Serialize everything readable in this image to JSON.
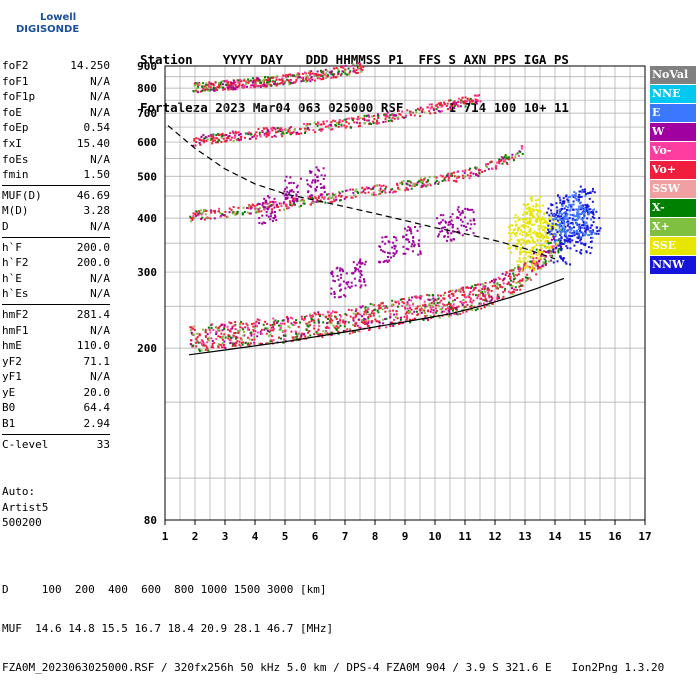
{
  "logo": {
    "line1": "Lowell",
    "line2": "DIGISONDE"
  },
  "header": {
    "labels": "Station    YYYY DAY   DDD HHMMSS P1  FFS S AXN PPS IGA PS",
    "values": "Fortaleza 2023 Mar04 063 025000 RSF      1 714 100 10+ 11"
  },
  "params": {
    "group1": [
      {
        "label": "foF2",
        "value": "14.250"
      },
      {
        "label": "foF1",
        "value": "N/A"
      },
      {
        "label": "foF1p",
        "value": "N/A"
      },
      {
        "label": "foE",
        "value": "N/A"
      },
      {
        "label": "foEp",
        "value": "0.54"
      },
      {
        "label": "fxI",
        "value": "15.40"
      },
      {
        "label": "foEs",
        "value": "N/A"
      },
      {
        "label": "fmin",
        "value": "1.50"
      }
    ],
    "group2": [
      {
        "label": "MUF(D)",
        "value": "46.69"
      },
      {
        "label": "M(D)",
        "value": "3.28"
      },
      {
        "label": "D",
        "value": "N/A"
      }
    ],
    "group3": [
      {
        "label": "h`F",
        "value": "200.0"
      },
      {
        "label": "h`F2",
        "value": "200.0"
      },
      {
        "label": "h`E",
        "value": "N/A"
      },
      {
        "label": "h`Es",
        "value": "N/A"
      }
    ],
    "group4": [
      {
        "label": "hmF2",
        "value": "281.4"
      },
      {
        "label": "hmF1",
        "value": "N/A"
      },
      {
        "label": "hmE",
        "value": "110.0"
      },
      {
        "label": "yF2",
        "value": "71.1"
      },
      {
        "label": "yF1",
        "value": "N/A"
      },
      {
        "label": "yE",
        "value": "20.0"
      },
      {
        "label": "B0",
        "value": "64.4"
      },
      {
        "label": "B1",
        "value": "2.94"
      }
    ],
    "group5": [
      {
        "label": "C-level",
        "value": "33"
      }
    ]
  },
  "auto": {
    "line1": "Auto:",
    "line2": "Artist5",
    "line3": "500200"
  },
  "bottom": {
    "line1": "D     100  200  400  600  800 1000 1500 3000 [km]",
    "line2": "MUF  14.6 14.8 15.5 16.7 18.4 20.9 28.1 46.7 [MHz]",
    "line3": "FZA0M_2023063025000.RSF / 320fx256h 50 kHz 5.0 km / DPS-4 FZA0M 904 / 3.9 S 321.6 E   Ion2Png 1.3.20"
  },
  "legend": [
    {
      "label": "NoVal",
      "color": "#808080"
    },
    {
      "label": "NNE",
      "color": "#00c8f0"
    },
    {
      "label": "E",
      "color": "#3c78ff"
    },
    {
      "label": "W",
      "color": "#a000a0"
    },
    {
      "label": "Vo-",
      "color": "#ff3ca0"
    },
    {
      "label": "Vo+",
      "color": "#f01e3c"
    },
    {
      "label": "SSW",
      "color": "#f0a0a0"
    },
    {
      "label": "X-",
      "color": "#008000"
    },
    {
      "label": "X+",
      "color": "#80c040"
    },
    {
      "label": "SSE",
      "color": "#e6e600"
    },
    {
      "label": "NNW",
      "color": "#1414dc"
    }
  ],
  "chart_data": {
    "type": "scatter",
    "xlabel": "",
    "ylabel": "",
    "xlim": [
      1,
      17
    ],
    "ylim": [
      80,
      900
    ],
    "x_ticks": [
      1,
      2,
      3,
      4,
      5,
      6,
      7,
      8,
      9,
      10,
      11,
      12,
      13,
      14,
      15,
      16,
      17
    ],
    "y_ticks": [
      80,
      200,
      300,
      400,
      500,
      600,
      700,
      800,
      900
    ],
    "y_scale": "log",
    "grid": true,
    "series": [
      {
        "name": "Vo+",
        "color": "#f01e3c",
        "trace": [
          [
            1.8,
            210
          ],
          [
            3,
            215
          ],
          [
            5,
            222
          ],
          [
            7,
            232
          ],
          [
            9,
            245
          ],
          [
            10.5,
            255
          ],
          [
            11.5,
            265
          ],
          [
            12.5,
            285
          ],
          [
            13,
            300
          ],
          [
            13.6,
            330
          ],
          [
            14.2,
            360
          ]
        ]
      },
      {
        "name": "Vo+",
        "color": "#f01e3c",
        "trace": [
          [
            1.8,
            405
          ],
          [
            3,
            415
          ],
          [
            5,
            432
          ],
          [
            7,
            455
          ],
          [
            9,
            478
          ],
          [
            10.5,
            498
          ],
          [
            11.5,
            517
          ],
          [
            12,
            535
          ],
          [
            12.5,
            555
          ],
          [
            12.9,
            580
          ]
        ]
      },
      {
        "name": "Vo+",
        "color": "#f01e3c",
        "trace": [
          [
            1.9,
            605
          ],
          [
            3,
            620
          ],
          [
            5,
            640
          ],
          [
            7,
            665
          ],
          [
            9,
            700
          ],
          [
            10.5,
            735
          ],
          [
            11.5,
            760
          ]
        ]
      },
      {
        "name": "Vo+",
        "color": "#f01e3c",
        "trace": [
          [
            1.9,
            805
          ],
          [
            3,
            815
          ],
          [
            5,
            840
          ],
          [
            6.5,
            870
          ],
          [
            7.6,
            900
          ]
        ]
      },
      {
        "name": "SSE",
        "color": "#e6e600",
        "points": [
          [
            12.6,
            360
          ],
          [
            12.9,
            380
          ],
          [
            13.2,
            400
          ],
          [
            13.4,
            420
          ],
          [
            13.6,
            390
          ],
          [
            13.8,
            370
          ],
          [
            13.3,
            350
          ],
          [
            13.0,
            330
          ]
        ]
      },
      {
        "name": "NNW",
        "color": "#1414dc",
        "points": [
          [
            14.0,
            400
          ],
          [
            14.3,
            420
          ],
          [
            14.6,
            380
          ],
          [
            14.9,
            360
          ],
          [
            15.0,
            440
          ],
          [
            14.2,
            340
          ],
          [
            15.2,
            400
          ]
        ]
      },
      {
        "name": "E",
        "color": "#3c78ff",
        "points": [
          [
            14.1,
            380
          ],
          [
            14.4,
            400
          ],
          [
            14.7,
            430
          ],
          [
            15.0,
            390
          ]
        ]
      },
      {
        "name": "W",
        "color": "#a000a0",
        "points": [
          [
            6.8,
            285
          ],
          [
            7.4,
            300
          ],
          [
            8.4,
            340
          ],
          [
            9.2,
            355
          ],
          [
            10.3,
            380
          ],
          [
            11,
            395
          ],
          [
            5.2,
            470
          ],
          [
            6,
            490
          ],
          [
            4.4,
            420
          ]
        ]
      }
    ],
    "profile_solid": [
      [
        1.8,
        193
      ],
      [
        3,
        198
      ],
      [
        5,
        207
      ],
      [
        7,
        218
      ],
      [
        9,
        230
      ],
      [
        10.5,
        240
      ],
      [
        11.5,
        250
      ],
      [
        12.5,
        262
      ],
      [
        13.4,
        275
      ],
      [
        14,
        285
      ],
      [
        14.3,
        290
      ]
    ],
    "profile_dashed": [
      [
        1.1,
        655
      ],
      [
        2,
        580
      ],
      [
        3,
        520
      ],
      [
        4,
        480
      ],
      [
        5,
        455
      ],
      [
        6,
        440
      ],
      [
        7,
        425
      ],
      [
        8,
        410
      ],
      [
        9,
        395
      ],
      [
        10,
        380
      ],
      [
        11,
        368
      ],
      [
        12,
        355
      ],
      [
        13,
        340
      ],
      [
        14,
        322
      ]
    ]
  }
}
